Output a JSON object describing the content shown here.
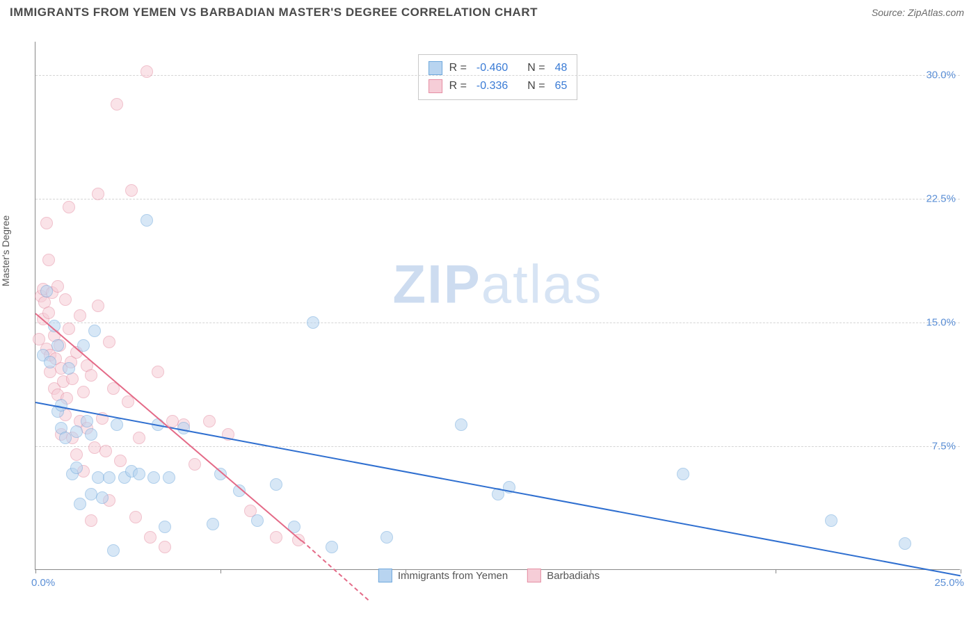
{
  "header": {
    "title": "IMMIGRANTS FROM YEMEN VS BARBADIAN MASTER'S DEGREE CORRELATION CHART",
    "source_prefix": "Source: ",
    "source": "ZipAtlas.com"
  },
  "chart": {
    "type": "scatter",
    "xlabel": "",
    "ylabel": "Master's Degree",
    "xlim": [
      0,
      25
    ],
    "ylim": [
      0,
      32
    ],
    "xtick_labels": {
      "0": "0.0%",
      "25": "25.0%"
    },
    "xtick_positions": [
      0,
      5,
      10,
      15,
      20,
      25
    ],
    "ytick_labels": {
      "7.5": "7.5%",
      "15": "15.0%",
      "22.5": "22.5%",
      "30": "30.0%"
    },
    "grid_y": [
      7.5,
      15,
      22.5,
      30
    ],
    "grid_color": "#d5d5d5",
    "axis_color": "#888888",
    "background_color": "#ffffff",
    "tick_label_color": "#5b8fd6",
    "axis_label_color": "#555555",
    "point_radius": 9,
    "point_opacity": 0.55,
    "watermark": {
      "bold": "ZIP",
      "rest": "atlas",
      "color_bold": "#cddcf0",
      "color_rest": "#d7e4f4",
      "fontsize": 78
    }
  },
  "series": {
    "yemen": {
      "label": "Immigrants from Yemen",
      "color_fill": "#b8d4f0",
      "color_stroke": "#6fa8dc",
      "trend_color": "#2f6fd0",
      "trend": {
        "x1": 0,
        "y1": 10.2,
        "x2": 25,
        "y2": -0.3
      },
      "r": "-0.460",
      "n": "48",
      "points": [
        [
          0.2,
          13.0
        ],
        [
          0.3,
          16.9
        ],
        [
          0.4,
          12.6
        ],
        [
          0.5,
          14.8
        ],
        [
          0.6,
          13.6
        ],
        [
          0.6,
          9.6
        ],
        [
          0.7,
          8.6
        ],
        [
          0.7,
          10.0
        ],
        [
          0.8,
          8.0
        ],
        [
          0.9,
          12.2
        ],
        [
          1.0,
          5.8
        ],
        [
          1.1,
          6.2
        ],
        [
          1.1,
          8.4
        ],
        [
          1.2,
          4.0
        ],
        [
          1.3,
          13.6
        ],
        [
          1.4,
          9.0
        ],
        [
          1.5,
          8.2
        ],
        [
          1.5,
          4.6
        ],
        [
          1.6,
          14.5
        ],
        [
          1.7,
          5.6
        ],
        [
          1.8,
          4.4
        ],
        [
          2.0,
          5.6
        ],
        [
          2.1,
          1.2
        ],
        [
          2.2,
          8.8
        ],
        [
          2.4,
          5.6
        ],
        [
          2.6,
          6.0
        ],
        [
          2.8,
          5.8
        ],
        [
          3.0,
          21.2
        ],
        [
          3.2,
          5.6
        ],
        [
          3.3,
          8.8
        ],
        [
          3.5,
          2.6
        ],
        [
          3.6,
          5.6
        ],
        [
          4.0,
          8.6
        ],
        [
          4.8,
          2.8
        ],
        [
          5.0,
          5.8
        ],
        [
          5.5,
          4.8
        ],
        [
          6.0,
          3.0
        ],
        [
          6.5,
          5.2
        ],
        [
          7.0,
          2.6
        ],
        [
          7.5,
          15.0
        ],
        [
          8.0,
          1.4
        ],
        [
          9.5,
          2.0
        ],
        [
          11.5,
          8.8
        ],
        [
          12.5,
          4.6
        ],
        [
          12.8,
          5.0
        ],
        [
          17.5,
          5.8
        ],
        [
          21.5,
          3.0
        ],
        [
          23.5,
          1.6
        ]
      ]
    },
    "barbadians": {
      "label": "Barbadians",
      "color_fill": "#f6cdd7",
      "color_stroke": "#e58fa4",
      "trend_color": "#e46a87",
      "trend": {
        "x1": 0,
        "y1": 15.6,
        "x2": 7.2,
        "y2": 1.8
      },
      "trend_dash": {
        "x1": 7.2,
        "y1": 1.8,
        "x2": 9.0,
        "y2": -1.8
      },
      "r": "-0.336",
      "n": "65",
      "points": [
        [
          0.1,
          14.0
        ],
        [
          0.15,
          16.6
        ],
        [
          0.2,
          17.0
        ],
        [
          0.2,
          15.2
        ],
        [
          0.25,
          16.2
        ],
        [
          0.3,
          13.4
        ],
        [
          0.3,
          21.0
        ],
        [
          0.35,
          18.8
        ],
        [
          0.35,
          15.6
        ],
        [
          0.4,
          12.0
        ],
        [
          0.4,
          13.0
        ],
        [
          0.45,
          16.8
        ],
        [
          0.5,
          14.2
        ],
        [
          0.5,
          11.0
        ],
        [
          0.55,
          12.8
        ],
        [
          0.6,
          10.6
        ],
        [
          0.6,
          17.2
        ],
        [
          0.65,
          13.6
        ],
        [
          0.7,
          12.2
        ],
        [
          0.7,
          8.2
        ],
        [
          0.75,
          11.4
        ],
        [
          0.8,
          16.4
        ],
        [
          0.8,
          9.4
        ],
        [
          0.85,
          10.4
        ],
        [
          0.9,
          14.6
        ],
        [
          0.9,
          22.0
        ],
        [
          0.95,
          12.6
        ],
        [
          1.0,
          11.6
        ],
        [
          1.0,
          8.0
        ],
        [
          1.1,
          13.2
        ],
        [
          1.1,
          7.0
        ],
        [
          1.2,
          9.0
        ],
        [
          1.2,
          15.4
        ],
        [
          1.3,
          10.8
        ],
        [
          1.3,
          6.0
        ],
        [
          1.4,
          12.4
        ],
        [
          1.4,
          8.6
        ],
        [
          1.5,
          11.8
        ],
        [
          1.5,
          3.0
        ],
        [
          1.6,
          7.4
        ],
        [
          1.7,
          16.0
        ],
        [
          1.7,
          22.8
        ],
        [
          1.8,
          9.2
        ],
        [
          1.9,
          7.2
        ],
        [
          2.0,
          13.8
        ],
        [
          2.0,
          4.2
        ],
        [
          2.1,
          11.0
        ],
        [
          2.2,
          28.2
        ],
        [
          2.3,
          6.6
        ],
        [
          2.5,
          10.2
        ],
        [
          2.6,
          23.0
        ],
        [
          2.7,
          3.2
        ],
        [
          2.8,
          8.0
        ],
        [
          3.0,
          30.2
        ],
        [
          3.1,
          2.0
        ],
        [
          3.3,
          12.0
        ],
        [
          3.5,
          1.4
        ],
        [
          3.7,
          9.0
        ],
        [
          4.0,
          8.8
        ],
        [
          4.3,
          6.4
        ],
        [
          4.7,
          9.0
        ],
        [
          5.2,
          8.2
        ],
        [
          5.8,
          3.6
        ],
        [
          6.5,
          2.0
        ],
        [
          7.1,
          1.8
        ]
      ]
    }
  },
  "legend_top": {
    "r_label": "R =",
    "n_label": "N ="
  }
}
